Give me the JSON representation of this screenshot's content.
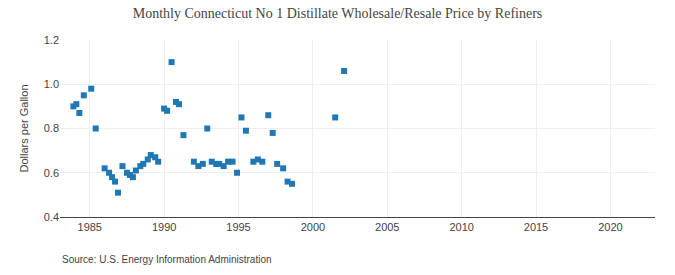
{
  "chart_data": {
    "type": "scatter",
    "title": "Monthly Connecticut No 1 Distillate Wholesale/Resale Price by Refiners",
    "ylabel": "Dollars per Gallon",
    "annotations": [
      "Source: U.S. Energy Information Administration"
    ],
    "marker": "square",
    "grid": true,
    "xlim": [
      1983,
      2023
    ],
    "ylim": [
      0.4,
      1.2
    ],
    "xticks": [
      1985,
      1990,
      1995,
      2000,
      2005,
      2010,
      2015,
      2020
    ],
    "yticks": [
      0.4,
      0.6,
      0.8,
      {
        "value": 1.0,
        "label": "1.0"
      },
      1.2
    ],
    "x": [
      1983.9,
      1984.1,
      1984.3,
      1984.6,
      1985.1,
      1985.4,
      1986.0,
      1986.3,
      1986.5,
      1986.7,
      1986.9,
      1987.2,
      1987.5,
      1987.7,
      1987.9,
      1988.1,
      1988.4,
      1988.6,
      1988.9,
      1989.1,
      1989.4,
      1989.6,
      1990.0,
      1990.2,
      1990.5,
      1990.8,
      1991.0,
      1991.3,
      1992.0,
      1992.3,
      1992.6,
      1992.9,
      1993.2,
      1993.5,
      1993.7,
      1994.0,
      1994.3,
      1994.6,
      1994.9,
      1995.2,
      1995.5,
      1996.0,
      1996.3,
      1996.6,
      1997.0,
      1997.3,
      1997.6,
      1998.0,
      1998.3,
      1998.6,
      2001.5,
      2002.1
    ],
    "values": [
      0.9,
      0.91,
      0.87,
      0.95,
      0.98,
      0.8,
      0.62,
      0.6,
      0.58,
      0.56,
      0.51,
      0.63,
      0.6,
      0.59,
      0.58,
      0.61,
      0.63,
      0.64,
      0.66,
      0.68,
      0.67,
      0.65,
      0.89,
      0.88,
      1.1,
      0.92,
      0.91,
      0.77,
      0.65,
      0.63,
      0.64,
      0.8,
      0.65,
      0.64,
      0.64,
      0.63,
      0.65,
      0.65,
      0.6,
      0.85,
      0.79,
      0.65,
      0.66,
      0.65,
      0.86,
      0.78,
      0.64,
      0.62,
      0.56,
      0.55,
      0.85,
      1.06
    ]
  }
}
